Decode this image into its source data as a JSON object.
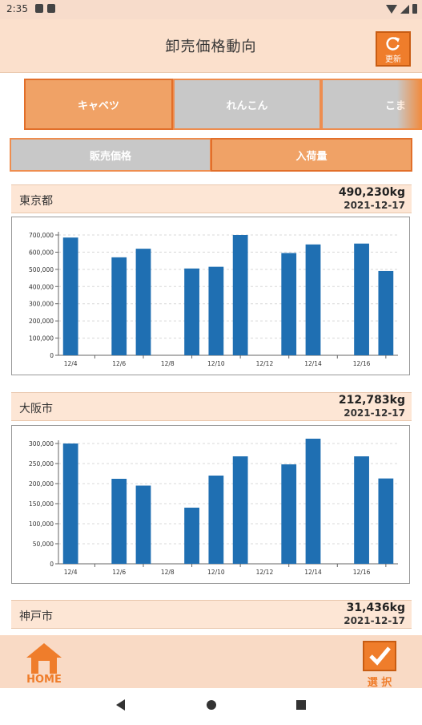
{
  "status": {
    "time": "2:35"
  },
  "header": {
    "title": "卸売価格動向",
    "refresh_label": "更新"
  },
  "tabs": [
    {
      "label": "キャベツ",
      "active": true
    },
    {
      "label": "れんこん",
      "active": false
    },
    {
      "label": "こま",
      "active": false
    }
  ],
  "modes": [
    {
      "label": "販売価格",
      "active": false
    },
    {
      "label": "入荷量",
      "active": true
    }
  ],
  "markets": [
    {
      "name": "東京都",
      "amount": "490,230kg",
      "date": "2021-12-17"
    },
    {
      "name": "大阪市",
      "amount": "212,783kg",
      "date": "2021-12-17"
    },
    {
      "name": "神戸市",
      "amount": "31,436kg",
      "date": "2021-12-17"
    }
  ],
  "bottom": {
    "home_label": "HOME",
    "select_label": "選 択"
  },
  "colors": {
    "accent": "#ef7d2b",
    "bar": "#1f6fb2",
    "header_bg": "#fbe0cc"
  },
  "chart_data": [
    {
      "type": "bar",
      "title": "",
      "x_tick_labels": [
        "12/4",
        "12/6",
        "12/8",
        "12/10",
        "12/12",
        "12/14",
        "12/16"
      ],
      "y_tick_labels": [
        "0",
        "100,000",
        "200,000",
        "300,000",
        "400,000",
        "500,000",
        "600,000",
        "700,000"
      ],
      "ylim": [
        0,
        700000
      ],
      "categories": [
        "12/4",
        "12/5",
        "12/6",
        "12/7",
        "12/8",
        "12/9",
        "12/10",
        "12/11",
        "12/12",
        "12/13",
        "12/14",
        "12/15",
        "12/16",
        "12/17"
      ],
      "values": [
        685000,
        0,
        570000,
        620000,
        0,
        505000,
        515000,
        700000,
        0,
        595000,
        645000,
        0,
        650000,
        490230
      ]
    },
    {
      "type": "bar",
      "title": "",
      "x_tick_labels": [
        "12/4",
        "12/6",
        "12/8",
        "12/10",
        "12/12",
        "12/14",
        "12/16"
      ],
      "y_tick_labels": [
        "0",
        "50,000",
        "100,000",
        "150,000",
        "200,000",
        "250,000",
        "300,000"
      ],
      "ylim": [
        0,
        300000
      ],
      "categories": [
        "12/4",
        "12/5",
        "12/6",
        "12/7",
        "12/8",
        "12/9",
        "12/10",
        "12/11",
        "12/12",
        "12/13",
        "12/14",
        "12/15",
        "12/16",
        "12/17"
      ],
      "values": [
        300000,
        0,
        212000,
        195000,
        0,
        140000,
        220000,
        268000,
        0,
        248000,
        312000,
        0,
        268000,
        212783
      ]
    }
  ]
}
